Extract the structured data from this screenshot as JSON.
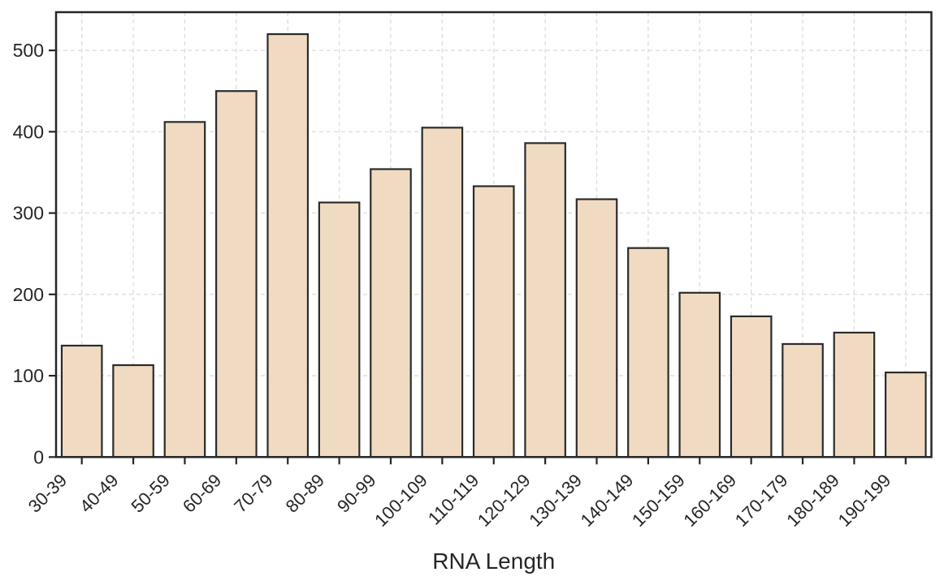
{
  "chart_data": {
    "type": "bar",
    "title": "",
    "xlabel": "RNA Length",
    "ylabel": "",
    "categories": [
      "30-39",
      "40-49",
      "50-59",
      "60-69",
      "70-79",
      "80-89",
      "90-99",
      "100-109",
      "110-119",
      "120-129",
      "130-139",
      "140-149",
      "150-159",
      "160-169",
      "170-179",
      "180-189",
      "190-199"
    ],
    "values": [
      137,
      113,
      412,
      450,
      520,
      313,
      354,
      405,
      333,
      386,
      317,
      257,
      202,
      173,
      139,
      153,
      104
    ],
    "yticks": [
      0,
      100,
      200,
      300,
      400,
      500
    ],
    "ylim": [
      0,
      547
    ],
    "grid": true,
    "grid_style": "dashed",
    "legend_position": "none",
    "x_tick_rotation_deg": 45,
    "colors": {
      "bar_fill": "#f0dbc2",
      "bar_edge": "#2b2b2b",
      "spine": "#262626",
      "grid": "#dcdcdc",
      "text": "#262626",
      "background": "#ffffff"
    }
  }
}
